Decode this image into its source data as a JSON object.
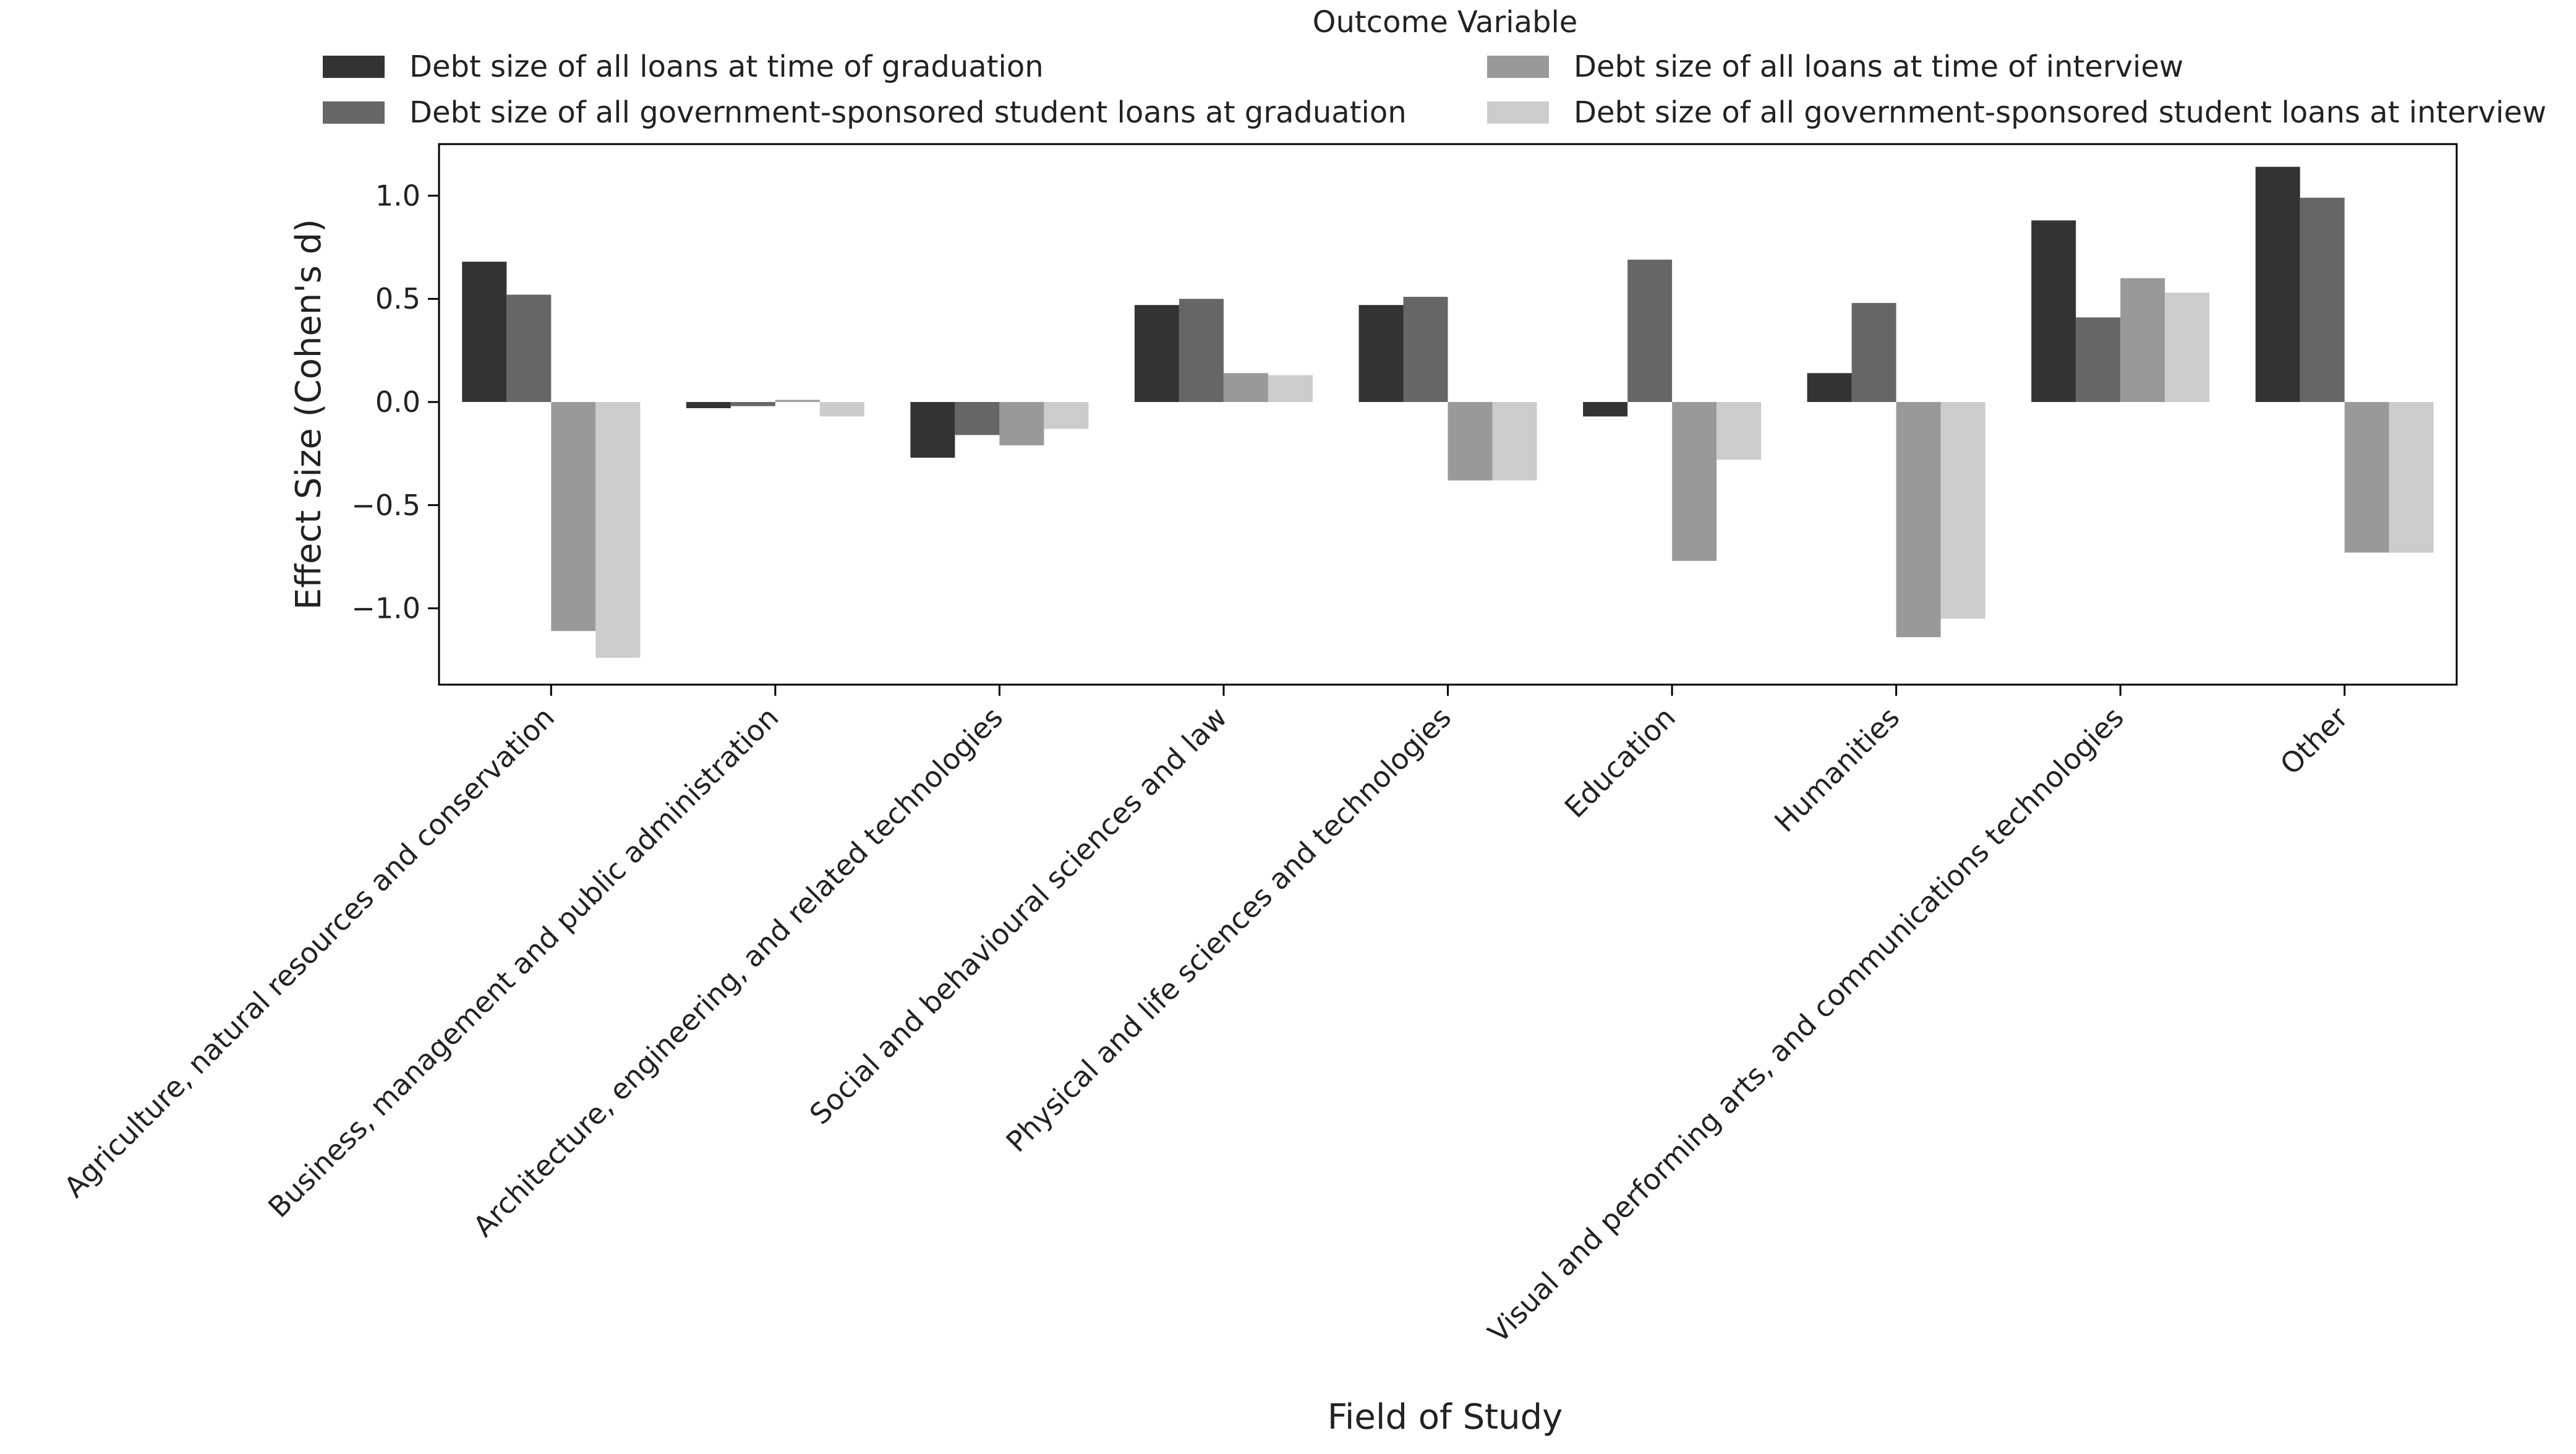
{
  "chart_data": {
    "type": "bar",
    "title": "",
    "legend": {
      "title": "Outcome Variable",
      "placement": "top"
    },
    "xlabel": "Field of Study",
    "ylabel": "Effect Size (Cohen's d)",
    "ylim": [
      -1.37,
      1.25
    ],
    "yticks": [
      1.0,
      0.5,
      0.0,
      -0.5,
      -1.0
    ],
    "ytick_labels": [
      "1.0",
      "0.5",
      "0.0",
      "−0.5",
      "−1.0"
    ],
    "grid": false,
    "categories": [
      "Agriculture, natural resources and conservation",
      "Business, management and public administration",
      "Architecture, engineering, and related technologies",
      "Social and behavioural sciences and law",
      "Physical and life sciences and technologies",
      "Education",
      "Humanities",
      "Visual and performing arts, and communications technologies",
      "Other"
    ],
    "series": [
      {
        "name": "Debt size of all loans at time of graduation",
        "color": "#333333",
        "values": [
          0.68,
          -0.03,
          -0.27,
          0.47,
          0.47,
          -0.07,
          0.14,
          0.88,
          1.14
        ]
      },
      {
        "name": "Debt size of all government-sponsored student loans at graduation",
        "color": "#666666",
        "values": [
          0.52,
          -0.02,
          -0.16,
          0.5,
          0.51,
          0.69,
          0.48,
          0.41,
          0.99
        ]
      },
      {
        "name": "Debt size of all loans at time of interview",
        "color": "#999999",
        "values": [
          -1.11,
          0.01,
          -0.21,
          0.14,
          -0.38,
          -0.77,
          -1.14,
          0.6,
          -0.73
        ]
      },
      {
        "name": "Debt size of all government-sponsored student loans at interview",
        "color": "#cccccc",
        "values": [
          -1.24,
          -0.07,
          -0.13,
          0.13,
          -0.38,
          -0.28,
          -1.05,
          0.53,
          -0.73
        ]
      }
    ]
  }
}
